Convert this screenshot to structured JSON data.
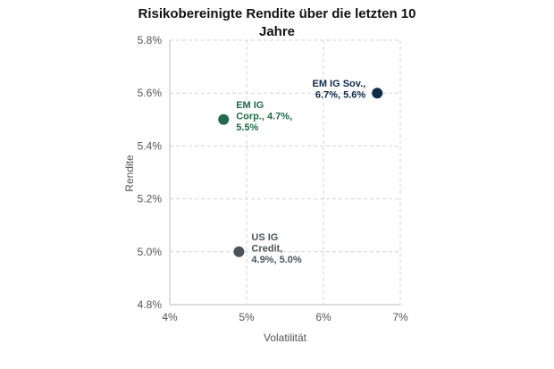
{
  "chart_data": {
    "type": "scatter",
    "title_lines": [
      "Risikobereinigte Rendite über die letzten 10",
      "Jahre"
    ],
    "xlabel": "Volatilität",
    "ylabel": "Rendite",
    "xlim": [
      4,
      7
    ],
    "ylim": [
      4.8,
      5.8
    ],
    "x_ticks": [
      4,
      5,
      6,
      7
    ],
    "x_tick_labels": [
      "4%",
      "5%",
      "6%",
      "7%"
    ],
    "y_ticks": [
      4.8,
      5.0,
      5.2,
      5.4,
      5.6,
      5.8
    ],
    "y_tick_labels": [
      "4.8%",
      "5.0%",
      "5.2%",
      "5.4%",
      "5.6%",
      "5.8%"
    ],
    "grid": true,
    "points": [
      {
        "x": 4.7,
        "y": 5.5,
        "label_lines": [
          "EM IG",
          "Corp., 4.7%,",
          "5.5%"
        ],
        "color": "#1f6b4e",
        "label_side": "right"
      },
      {
        "x": 6.7,
        "y": 5.6,
        "label_lines": [
          "EM IG Sov.,",
          "6.7%, 5.6%"
        ],
        "color": "#0f2b4a",
        "label_side": "left"
      },
      {
        "x": 4.9,
        "y": 5.0,
        "label_lines": [
          "US IG",
          "Credit,",
          "4.9%, 5.0%"
        ],
        "color": "#4d535c",
        "label_side": "right"
      }
    ]
  }
}
